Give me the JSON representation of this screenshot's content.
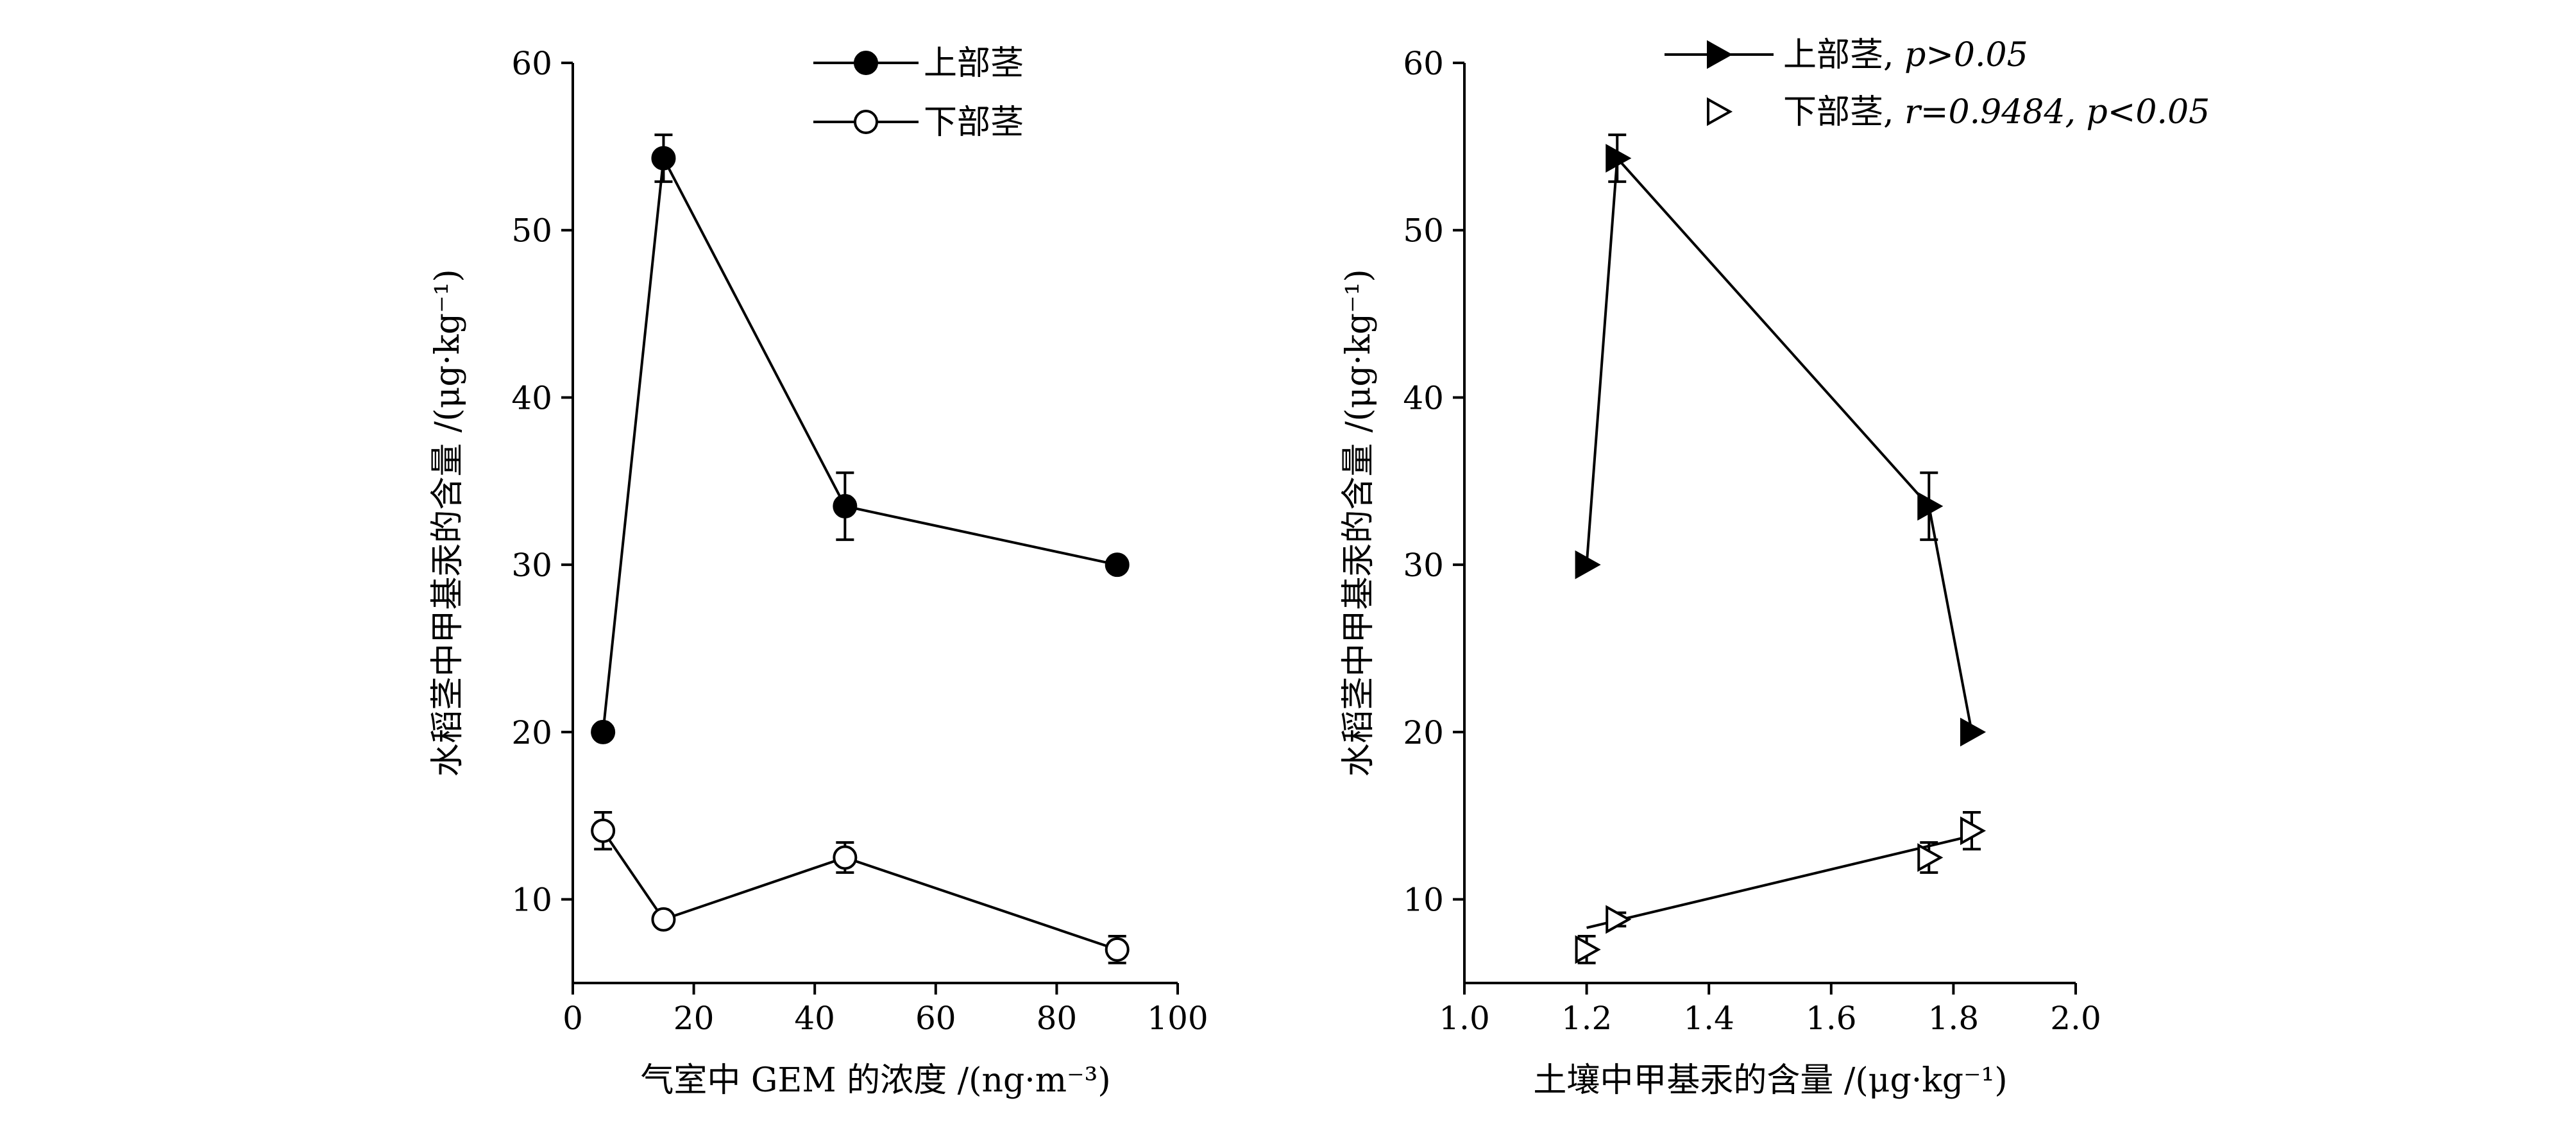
{
  "chart_data": [
    {
      "type": "line",
      "xlabel": "气室中 GEM 的浓度 /(ng·m⁻³)",
      "ylabel": "水稻茎中甲基汞的含量 /(μg·kg⁻¹)",
      "xlim": [
        0,
        100
      ],
      "ylim": [
        5,
        60
      ],
      "xticks": [
        "0",
        "20",
        "40",
        "60",
        "80",
        "100"
      ],
      "yticks": [
        "10",
        "20",
        "30",
        "40",
        "50",
        "60"
      ],
      "legend": "top-center",
      "series": [
        {
          "name": "上部茎",
          "marker": "filled-circle",
          "x": [
            5,
            15,
            45,
            90
          ],
          "y": [
            20,
            54.3,
            33.5,
            30
          ],
          "err": [
            0,
            1.4,
            2,
            0
          ]
        },
        {
          "name": "下部茎",
          "marker": "open-circle",
          "x": [
            5,
            15,
            45,
            90
          ],
          "y": [
            14.1,
            8.8,
            12.5,
            7
          ],
          "err": [
            1.1,
            0.4,
            0.9,
            0.8
          ]
        }
      ]
    },
    {
      "type": "scatter",
      "xlabel": "土壤中甲基汞的含量 /(μg·kg⁻¹)",
      "ylabel": "水稻茎中甲基汞的含量 /(μg·kg⁻¹)",
      "xlim": [
        1.0,
        2.0
      ],
      "ylim": [
        5,
        60
      ],
      "xticks": [
        "1.0",
        "1.2",
        "1.4",
        "1.6",
        "1.8",
        "2.0"
      ],
      "yticks": [
        "10",
        "20",
        "30",
        "40",
        "50",
        "60"
      ],
      "legend": "top-center",
      "series": [
        {
          "name": "上部茎",
          "stats": "p>0.05",
          "marker": "filled-triangle-right",
          "x": [
            1.2,
            1.25,
            1.76,
            1.83
          ],
          "y": [
            30,
            54.3,
            33.5,
            20
          ],
          "err": [
            0,
            1.4,
            2,
            0
          ],
          "line_x": [
            1.2,
            1.25,
            1.76,
            1.83
          ],
          "line_y": [
            30,
            54.3,
            33.5,
            20
          ]
        },
        {
          "name": "下部茎",
          "stats": "r=0.9484, p<0.05",
          "marker": "open-triangle-right",
          "x": [
            1.2,
            1.25,
            1.76,
            1.83
          ],
          "y": [
            7,
            8.8,
            12.5,
            14.1
          ],
          "err": [
            0.8,
            0.4,
            0.9,
            1.1
          ],
          "line_x": [
            1.2,
            1.83
          ],
          "line_y": [
            8.3,
            13.8
          ]
        }
      ]
    }
  ]
}
